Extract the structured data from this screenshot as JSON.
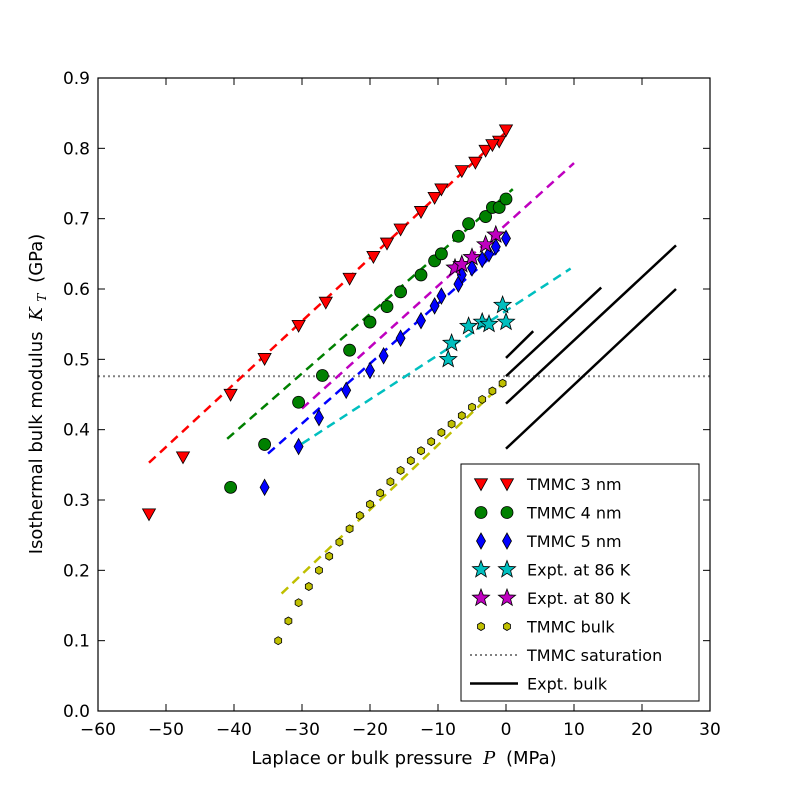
{
  "chart_data": {
    "type": "scatter",
    "title": "",
    "xlabel": "Laplace or bulk pressure",
    "xlabel_symbol": "P",
    "xlabel_unit": "(MPa)",
    "ylabel": "Isothermal bulk modulus",
    "ylabel_symbol": "K",
    "ylabel_subscript": "T",
    "ylabel_unit": "(GPa)",
    "xlim": [
      -60,
      30
    ],
    "ylim": [
      0.0,
      0.9
    ],
    "xticks": [
      "−60",
      "−50",
      "−40",
      "−30",
      "−20",
      "−10",
      "0",
      "10",
      "20",
      "30"
    ],
    "xtick_values": [
      -60,
      -50,
      -40,
      -30,
      -20,
      -10,
      0,
      10,
      20,
      30
    ],
    "yticks": [
      "0.0",
      "0.1",
      "0.2",
      "0.3",
      "0.4",
      "0.5",
      "0.6",
      "0.7",
      "0.8",
      "0.9"
    ],
    "ytick_values": [
      0.0,
      0.1,
      0.2,
      0.3,
      0.4,
      0.5,
      0.6,
      0.7,
      0.8,
      0.9
    ],
    "legend_position": "lower-right",
    "series": [
      {
        "name": "TMMC 3 nm",
        "marker": "triangle-down",
        "color": "#ff0000",
        "x": [
          -52.5,
          -47.5,
          -40.5,
          -35.5,
          -30.5,
          -26.5,
          -23.0,
          -19.5,
          -17.5,
          -15.5,
          -12.5,
          -10.5,
          -9.5,
          -6.5,
          -4.5,
          -3.0,
          -1.0,
          -2.0,
          0.0
        ],
        "y": [
          0.28,
          0.361,
          0.45,
          0.501,
          0.548,
          0.581,
          0.615,
          0.646,
          0.665,
          0.685,
          0.71,
          0.73,
          0.742,
          0.768,
          0.78,
          0.797,
          0.81,
          0.805,
          0.826
        ]
      },
      {
        "name": "TMMC 4 nm",
        "marker": "circle",
        "color": "#008000",
        "x": [
          -40.5,
          -35.5,
          -30.5,
          -27.0,
          -23.0,
          -20.0,
          -17.5,
          -15.5,
          -12.5,
          -10.5,
          -9.5,
          -7.0,
          -5.5,
          -3.0,
          -2.0,
          -1.0,
          0.0
        ],
        "y": [
          0.318,
          0.379,
          0.439,
          0.477,
          0.513,
          0.553,
          0.575,
          0.596,
          0.62,
          0.64,
          0.65,
          0.675,
          0.693,
          0.703,
          0.716,
          0.716,
          0.728
        ]
      },
      {
        "name": "TMMC 5 nm",
        "marker": "diamond",
        "color": "#0000ff",
        "x": [
          -35.5,
          -30.5,
          -27.5,
          -23.5,
          -20.0,
          -18.0,
          -15.5,
          -12.5,
          -10.5,
          -9.5,
          -7.0,
          -6.5,
          -5.0,
          -3.5,
          -2.5,
          -1.5,
          0.0
        ],
        "y": [
          0.318,
          0.376,
          0.417,
          0.456,
          0.484,
          0.505,
          0.53,
          0.555,
          0.576,
          0.59,
          0.607,
          0.62,
          0.63,
          0.642,
          0.65,
          0.66,
          0.672
        ]
      },
      {
        "name": "Expt. at 86 K",
        "marker": "star",
        "color": "#00bfbf",
        "x": [
          -8.5,
          -8.0,
          -5.5,
          -3.5,
          -2.5,
          -0.5,
          0.0
        ],
        "y": [
          0.5,
          0.523,
          0.547,
          0.553,
          0.55,
          0.577,
          0.553
        ]
      },
      {
        "name": "Expt. at 80 K",
        "marker": "star",
        "color": "#bf00bf",
        "x": [
          -7.5,
          -6.5,
          -5.0,
          -3.0,
          -1.5
        ],
        "y": [
          0.63,
          0.635,
          0.645,
          0.663,
          0.677
        ]
      },
      {
        "name": "TMMC bulk",
        "marker": "hexagon",
        "color": "#bfbf00",
        "x": [
          -33.5,
          -32.0,
          -30.5,
          -29.0,
          -27.5,
          -26.0,
          -24.5,
          -23.0,
          -21.5,
          -20.0,
          -18.5,
          -17.0,
          -15.5,
          -14.0,
          -12.5,
          -11.0,
          -9.5,
          -8.0,
          -6.5,
          -5.0,
          -3.5,
          -2.0,
          -0.5
        ],
        "y": [
          0.1,
          0.128,
          0.154,
          0.177,
          0.2,
          0.22,
          0.24,
          0.259,
          0.278,
          0.294,
          0.31,
          0.326,
          0.342,
          0.356,
          0.37,
          0.383,
          0.396,
          0.408,
          0.42,
          0.432,
          0.443,
          0.455,
          0.466
        ]
      }
    ],
    "fit_lines": [
      {
        "name": "fit 3 nm",
        "color": "#ff0000",
        "style": "dashed",
        "x": [
          -52.5,
          0.0
        ],
        "y": [
          0.353,
          0.823
        ]
      },
      {
        "name": "fit 4 nm",
        "color": "#008000",
        "style": "dashed",
        "x": [
          -41.0,
          1.0
        ],
        "y": [
          0.387,
          0.742
        ]
      },
      {
        "name": "fit 80 K",
        "color": "#bf00bf",
        "style": "dashed",
        "x": [
          -30.0,
          10.0
        ],
        "y": [
          0.43,
          0.779
        ]
      },
      {
        "name": "fit 5 nm",
        "color": "#0000ff",
        "style": "dashed",
        "x": [
          -35.0,
          -1.0
        ],
        "y": [
          0.366,
          0.656
        ]
      },
      {
        "name": "fit 86 K",
        "color": "#00bfbf",
        "style": "dashed",
        "x": [
          -30.0,
          9.5
        ],
        "y": [
          0.38,
          0.629
        ]
      },
      {
        "name": "fit bulk",
        "color": "#bfbf00",
        "style": "dashed",
        "x": [
          -33.0,
          0.0
        ],
        "y": [
          0.167,
          0.47
        ]
      }
    ],
    "saturation": {
      "name": "TMMC saturation",
      "color": "#808080",
      "style": "dotted",
      "y": 0.476
    },
    "expt_bulk_lines": [
      {
        "x": [
          0.0,
          4.0
        ],
        "y": [
          0.502,
          0.54
        ]
      },
      {
        "x": [
          0.0,
          14.0
        ],
        "y": [
          0.476,
          0.602
        ]
      },
      {
        "x": [
          0.0,
          25.0
        ],
        "y": [
          0.437,
          0.662
        ]
      },
      {
        "x": [
          0.0,
          25.0
        ],
        "y": [
          0.373,
          0.6
        ]
      }
    ],
    "expt_bulk_color": "#000000",
    "legend": [
      {
        "label": "TMMC 3 nm",
        "kind": "marker",
        "marker": "triangle-down",
        "color": "#ff0000"
      },
      {
        "label": "TMMC 4 nm",
        "kind": "marker",
        "marker": "circle",
        "color": "#008000"
      },
      {
        "label": "TMMC 5 nm",
        "kind": "marker",
        "marker": "diamond",
        "color": "#0000ff"
      },
      {
        "label": "Expt. at 86 K",
        "kind": "marker",
        "marker": "star",
        "color": "#00bfbf"
      },
      {
        "label": "Expt. at 80 K",
        "kind": "marker",
        "marker": "star",
        "color": "#bf00bf"
      },
      {
        "label": "TMMC bulk",
        "kind": "marker",
        "marker": "hexagon",
        "color": "#bfbf00"
      },
      {
        "label": "TMMC saturation",
        "kind": "line",
        "style": "dotted",
        "color": "#808080"
      },
      {
        "label": "Expt. bulk",
        "kind": "line",
        "style": "solid",
        "color": "#000000"
      }
    ]
  }
}
